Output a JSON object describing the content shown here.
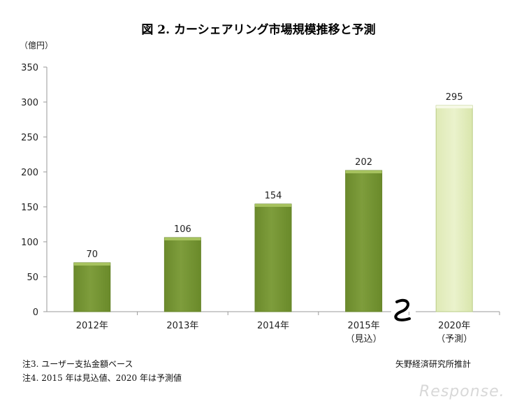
{
  "title": "図 2.  カーシェアリング市場規模推移と予測",
  "unit_label": "（億円）",
  "notes": [
    "注3. ユーザー支払金額ベース",
    "注4. 2015 年は見込値、2020 年は予測値"
  ],
  "source": "矢野経済研究所推計",
  "logo_text": "Response.",
  "colors": {
    "bar_actual": "#7e9d3c",
    "bar_actual_top": "#a6c25e",
    "bar_forecast": "#eaf2cc",
    "bar_forecast_stroke": "#b9cc86",
    "axis": "#9a9a9a"
  },
  "chart_data": {
    "type": "bar",
    "categories": [
      "2012年",
      "2013年",
      "2014年",
      "2015年\n（見込）",
      "2020年\n（予測）"
    ],
    "values": [
      70,
      106,
      154,
      202,
      295
    ],
    "forecast_index": 4,
    "ylim": [
      0,
      350
    ],
    "yticks": [
      0,
      50,
      100,
      150,
      200,
      250,
      300,
      350
    ],
    "axis_break": "between 2015 and 2020",
    "data_labels": true,
    "grid": false,
    "legend": "none"
  }
}
